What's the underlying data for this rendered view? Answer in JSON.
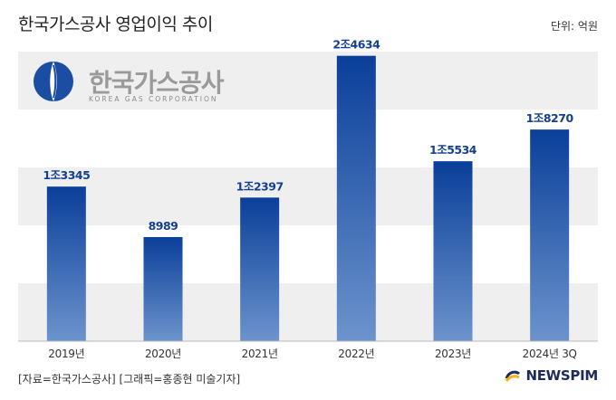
{
  "header": {
    "title": "한국가스공사 영업이익 추이",
    "unit": "단위: 억원"
  },
  "logo": {
    "name_ko": "한국가스공사",
    "name_en": "KOREA GAS CORPORATION"
  },
  "footer": {
    "source": "[자료=한국가스공사] [그래픽=홍종현 미술기자]",
    "brand": "NEWSPIM"
  },
  "colors": {
    "bar_top": "#0a3f9a",
    "bar_bottom": "#6c93cc",
    "label": "#153f8f",
    "band": "#efefef",
    "logo_blue": "#1b4ea3"
  },
  "chart_data": {
    "type": "bar",
    "categories": [
      "2019년",
      "2020년",
      "2021년",
      "2022년",
      "2023년",
      "2024년 3Q"
    ],
    "values": [
      13345,
      8989,
      12397,
      24634,
      15534,
      18270
    ],
    "data_labels": [
      "1조3345",
      "8989",
      "1조2397",
      "2조4634",
      "1조5534",
      "1조8270"
    ],
    "ylim": [
      0,
      25000
    ],
    "grid": "alternating horizontal bands",
    "legend": "none"
  }
}
